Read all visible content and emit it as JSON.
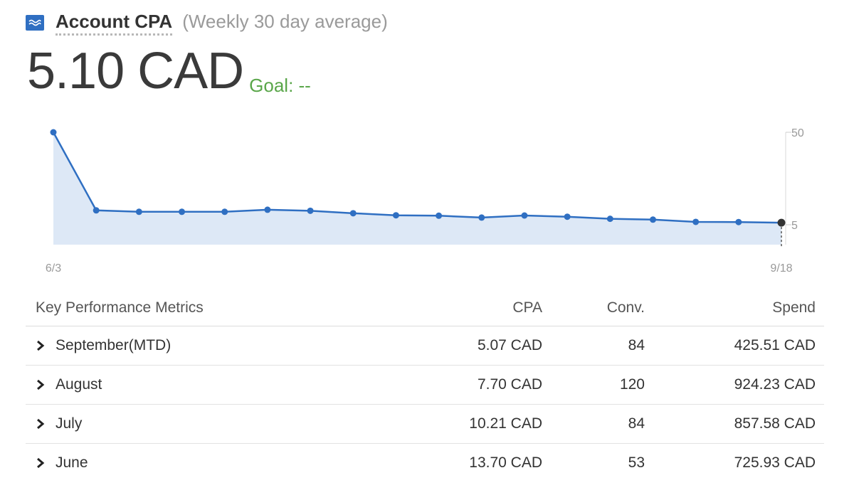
{
  "header": {
    "title": "Account CPA",
    "subtitle": "(Weekly 30 day average)"
  },
  "metric": {
    "value": "5.10 CAD",
    "goal": "Goal: --"
  },
  "colors": {
    "line": "#2f6fc2",
    "area": "#dde8f6",
    "goal": "#5aa64a",
    "last_point": "#333333"
  },
  "chart_data": {
    "type": "area",
    "x_start_label": "6/3",
    "x_end_label": "9/18",
    "y_ticks": [
      "50",
      "5"
    ],
    "y_ticks_values": [
      50,
      5
    ],
    "values": [
      50,
      12.0,
      11.3,
      11.3,
      11.3,
      12.3,
      11.8,
      10.6,
      9.6,
      9.4,
      8.5,
      9.5,
      8.9,
      7.9,
      7.5,
      6.4,
      6.3,
      6.0
    ],
    "legend": "none",
    "grid": false
  },
  "table": {
    "headers": {
      "name": "Key Performance Metrics",
      "cpa": "CPA",
      "conv": "Conv.",
      "spend": "Spend"
    },
    "rows": [
      {
        "name": "September(MTD)",
        "cpa": "5.07 CAD",
        "conv": "84",
        "spend": "425.51 CAD"
      },
      {
        "name": "August",
        "cpa": "7.70 CAD",
        "conv": "120",
        "spend": "924.23 CAD"
      },
      {
        "name": "July",
        "cpa": "10.21 CAD",
        "conv": "84",
        "spend": "857.58 CAD"
      },
      {
        "name": "June",
        "cpa": "13.70 CAD",
        "conv": "53",
        "spend": "725.93 CAD"
      }
    ]
  }
}
